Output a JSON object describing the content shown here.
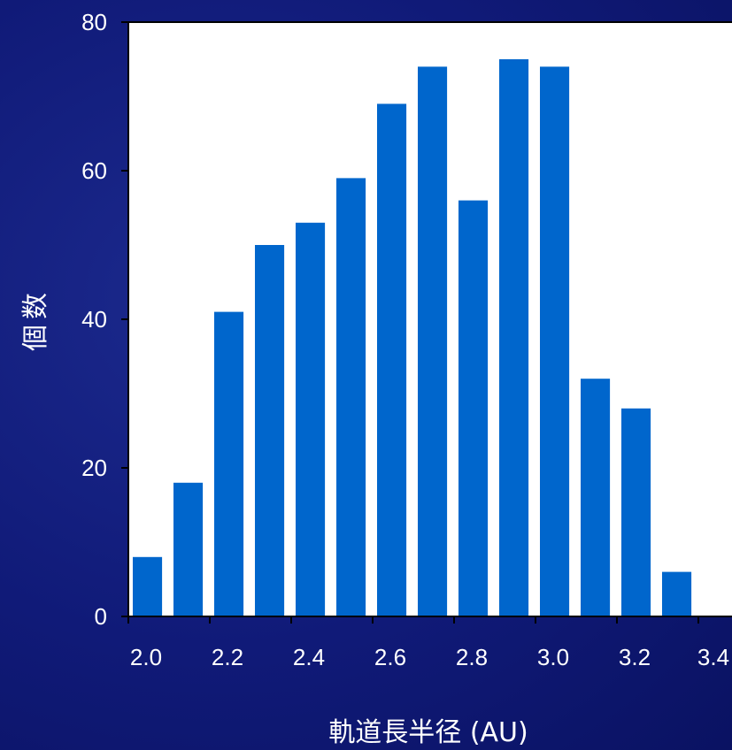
{
  "chart_data": {
    "type": "bar",
    "xlabel": "軌道長半径 (AU)",
    "ylabel": "個数",
    "x_bins": [
      2.0,
      2.1,
      2.2,
      2.3,
      2.4,
      2.5,
      2.6,
      2.7,
      2.8,
      2.9,
      3.0,
      3.1,
      3.2,
      3.3
    ],
    "values": [
      8,
      18,
      41,
      50,
      53,
      59,
      69,
      74,
      56,
      75,
      74,
      32,
      28,
      6
    ],
    "xticks": [
      "2.0",
      "2.2",
      "2.4",
      "2.6",
      "2.8",
      "3.0",
      "3.2",
      "3.4"
    ],
    "yticks": [
      "0",
      "20",
      "40",
      "60",
      "80"
    ],
    "xlim": [
      2.0,
      3.45
    ],
    "ylim": [
      0,
      80
    ],
    "grid": false,
    "colors": {
      "bar": "#0066cc",
      "plot_background": "#ffffff",
      "axis": "#000000",
      "text": "#ffffff"
    }
  }
}
